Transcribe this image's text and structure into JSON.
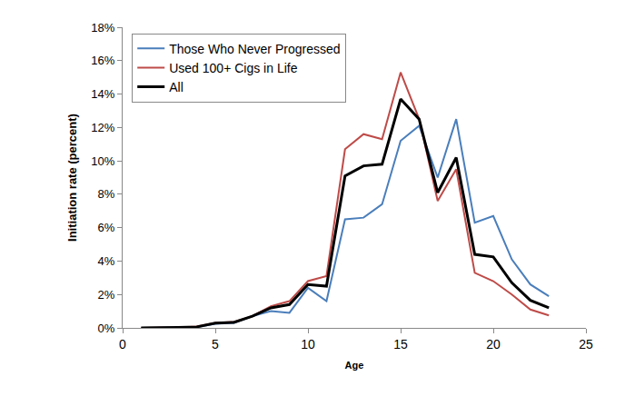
{
  "chart_data": {
    "type": "line",
    "x_label": "Age",
    "y_label": "Initiation rate (percent)",
    "x": [
      1,
      2,
      3,
      4,
      5,
      6,
      7,
      8,
      9,
      10,
      11,
      12,
      13,
      14,
      15,
      16,
      17,
      18,
      19,
      20,
      21,
      22,
      23
    ],
    "series": [
      {
        "name": "Those Who Never Progressed",
        "color": "#4a7ebb",
        "values": [
          0,
          0,
          0.03,
          0.05,
          0.25,
          0.3,
          0.7,
          1.0,
          0.9,
          2.4,
          1.6,
          6.5,
          6.6,
          7.4,
          11.2,
          12.1,
          9.0,
          12.5,
          6.3,
          6.7,
          4.1,
          2.6,
          1.9
        ]
      },
      {
        "name": "Used 100+ Cigs in Life",
        "color": "#be4b48",
        "values": [
          0,
          0,
          0.03,
          0.08,
          0.3,
          0.35,
          0.7,
          1.3,
          1.6,
          2.8,
          3.1,
          10.7,
          11.6,
          11.3,
          15.3,
          12.5,
          7.6,
          9.5,
          3.3,
          2.8,
          2.0,
          1.1,
          0.75
        ]
      },
      {
        "name": "All",
        "color": "#000000",
        "values": [
          0,
          0,
          0.03,
          0.06,
          0.28,
          0.33,
          0.7,
          1.2,
          1.4,
          2.6,
          2.5,
          9.1,
          9.7,
          9.8,
          13.7,
          12.5,
          8.1,
          10.2,
          4.4,
          4.25,
          2.7,
          1.65,
          1.2
        ]
      }
    ],
    "xlim": [
      0,
      25
    ],
    "xticks": [
      0,
      5,
      10,
      15,
      20,
      25
    ],
    "ylim": [
      0,
      18
    ],
    "yticks": [
      {
        "value": 0,
        "label": "0%"
      },
      {
        "value": 2,
        "label": "2%"
      },
      {
        "value": 4,
        "label": "4%"
      },
      {
        "value": 6,
        "label": "6%"
      },
      {
        "value": 8,
        "label": "8%"
      },
      {
        "value": 10,
        "label": "10%"
      },
      {
        "value": 12,
        "label": "12%"
      },
      {
        "value": 14,
        "label": "14%"
      },
      {
        "value": 16,
        "label": "16%"
      },
      {
        "value": 18,
        "label": "18%"
      }
    ],
    "grid": false,
    "legend": "upper left"
  }
}
